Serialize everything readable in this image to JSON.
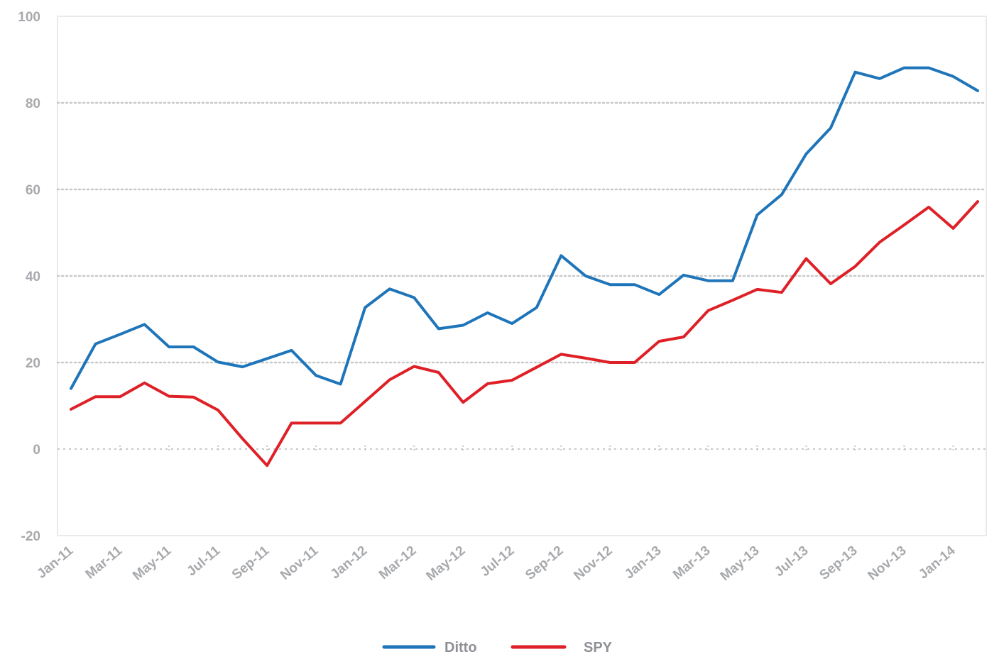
{
  "chart_data": {
    "type": "line",
    "title": "",
    "xlabel": "",
    "ylabel": "",
    "ylim": [
      -20,
      100
    ],
    "yticks": [
      -20,
      0,
      20,
      40,
      60,
      80,
      100
    ],
    "grid": "horizontal dotted",
    "legend_position": "bottom-center",
    "x": [
      "Jan-11",
      "Feb-11",
      "Mar-11",
      "Apr-11",
      "May-11",
      "Jun-11",
      "Jul-11",
      "Aug-11",
      "Sep-11",
      "Oct-11",
      "Nov-11",
      "Dec-11",
      "Jan-12",
      "Feb-12",
      "Mar-12",
      "Apr-12",
      "May-12",
      "Jun-12",
      "Jul-12",
      "Aug-12",
      "Sep-12",
      "Oct-12",
      "Nov-12",
      "Dec-12",
      "Jan-13",
      "Feb-13",
      "Mar-13",
      "Apr-13",
      "May-13",
      "Jun-13",
      "Jul-13",
      "Aug-13",
      "Sep-13",
      "Oct-13",
      "Nov-13",
      "Dec-13",
      "Jan-14",
      "Feb-14"
    ],
    "xtick_labels": [
      "Jan-11",
      "Mar-11",
      "May-11",
      "Jul-11",
      "Sep-11",
      "Nov-11",
      "Jan-12",
      "Mar-12",
      "May-12",
      "Jul-12",
      "Sep-12",
      "Nov-12",
      "Jan-13",
      "Mar-13",
      "May-13",
      "Jul-13",
      "Sep-13",
      "Nov-13",
      "Jan-14"
    ],
    "series": [
      {
        "name": "Ditto",
        "color": "#1f75b9",
        "values": [
          14,
          24.3,
          26.5,
          28.8,
          23.6,
          23.6,
          20.1,
          19,
          20.9,
          22.8,
          17,
          15,
          32.7,
          37,
          35,
          27.8,
          28.6,
          31.5,
          29,
          32.7,
          44.7,
          40,
          38,
          38,
          35.7,
          40.2,
          38.9,
          38.9,
          54.1,
          58.8,
          68.2,
          74.2,
          87.1,
          85.6,
          88.1,
          88.1,
          86.1,
          82.8
        ]
      },
      {
        "name": "SPY",
        "color": "#de2027",
        "values": [
          9.2,
          12.1,
          12.1,
          15.3,
          12.2,
          12,
          9,
          2.4,
          -3.8,
          6,
          6,
          6,
          11,
          16,
          19.1,
          17.7,
          10.8,
          15.1,
          15.9,
          18.9,
          21.9,
          21,
          20,
          20,
          24.9,
          25.9,
          32,
          34.4,
          36.9,
          36.2,
          44,
          38.2,
          42.2,
          47.8,
          51.8,
          55.9,
          51,
          57.2
        ]
      }
    ]
  }
}
